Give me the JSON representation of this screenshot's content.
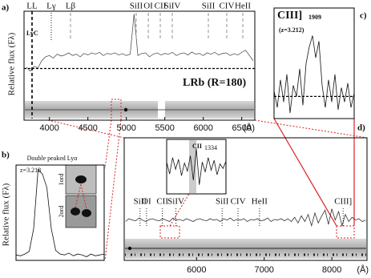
{
  "chart_data": [
    {
      "type": "line",
      "panel": "a)",
      "title": "LRb (R=180)",
      "y_label": "Relative flux (Fλ)",
      "x_unit": "(Å)",
      "annotation": "LyC",
      "annotation_color": "#2a4fd0",
      "zero_line": true,
      "xlim": [
        3670,
        6670
      ],
      "ylim": [
        -1,
        2.2
      ],
      "xticks": [
        4000,
        4500,
        5000,
        5500,
        6000,
        6500
      ],
      "x": [
        3700,
        3750,
        3800,
        3850,
        3900,
        3950,
        4000,
        4050,
        4100,
        4150,
        4200,
        4250,
        4300,
        4350,
        4400,
        4450,
        4500,
        4550,
        4600,
        4650,
        4700,
        4750,
        4800,
        4850,
        4900,
        4950,
        5000,
        5050,
        5100,
        5150,
        5200,
        5250,
        5300,
        5350,
        5400,
        5450,
        5500,
        5550,
        5600,
        5650,
        5700,
        5750,
        5800,
        5850,
        5900,
        5950,
        6000,
        6050,
        6100,
        6150,
        6200,
        6250,
        6300,
        6350,
        6400,
        6450,
        6500,
        6550,
        6600,
        6650
      ],
      "series": [
        {
          "color": "#555555",
          "values": [
            0.05,
            -0.1,
            0.08,
            0.02,
            0.3,
            0.45,
            0.5,
            0.4,
            0.55,
            0.48,
            0.52,
            0.6,
            0.5,
            0.55,
            0.45,
            0.58,
            0.52,
            0.6,
            0.55,
            0.62,
            0.5,
            0.58,
            0.55,
            0.6,
            0.52,
            0.57,
            0.5,
            0.55,
            2.1,
            0.5,
            0.58,
            0.6,
            0.45,
            0.55,
            0.6,
            0.52,
            0.58,
            0.55,
            0.62,
            0.5,
            0.57,
            0.6,
            0.52,
            0.63,
            0.55,
            0.58,
            0.5,
            0.6,
            0.55,
            0.62,
            0.52,
            0.58,
            0.6,
            0.5,
            0.57,
            0.52,
            0.62,
            0.7,
            0.5,
            0.3
          ]
        }
      ],
      "lines": [
        {
          "label": "LL",
          "x": 3774,
          "style": "bold-dashed"
        },
        {
          "label": "Lγ",
          "x": 4024,
          "style": "dotted"
        },
        {
          "label": "Lβ",
          "x": 4274,
          "style": "dashed"
        },
        {
          "label": "SiII",
          "x": 5128,
          "style": "dashed"
        },
        {
          "label": "OI",
          "x": 5285,
          "style": "dashed"
        },
        {
          "label": "CII",
          "x": 5441,
          "style": "dashed"
        },
        {
          "label": "SiIV",
          "x": 5597,
          "style": "dashed"
        },
        {
          "label": "SiII",
          "x": 6066,
          "style": "dashed"
        },
        {
          "label": "CIV",
          "x": 6305,
          "style": "dashed"
        },
        {
          "label": "HeII",
          "x": 6514,
          "style": "dashed"
        }
      ]
    },
    {
      "type": "line",
      "panel": "b)",
      "title": "Double peaked Lyα",
      "y_label": "Relative flux (Fλ)",
      "annotation": "z=3.218",
      "insets": [
        "1ord",
        "2ord"
      ],
      "xlim": [
        5100,
        5160
      ],
      "ylim": [
        -0.5,
        10
      ],
      "x": [
        5100,
        5103,
        5106,
        5109,
        5112,
        5115,
        5118,
        5121,
        5124,
        5127,
        5130,
        5133,
        5136,
        5139,
        5142,
        5145,
        5148,
        5151,
        5154,
        5157,
        5160
      ],
      "series": [
        {
          "color": "#111111",
          "values": [
            0.1,
            0.0,
            0.2,
            0.5,
            3,
            9.5,
            9,
            7.5,
            3,
            0.6,
            0.2,
            0.1,
            0.3,
            0.0,
            0.2,
            0.1,
            -0.1,
            0.2,
            0.0,
            0.1,
            0.2
          ]
        }
      ]
    },
    {
      "type": "line",
      "panel": "c)",
      "title": "CIII]",
      "title_sub": "1909",
      "annotation": "(z=3.212)",
      "zero_line": true,
      "xlim": [
        7990,
        8090
      ],
      "ylim": [
        -2,
        8
      ],
      "x": [
        7990,
        7994,
        7998,
        8002,
        8006,
        8010,
        8014,
        8018,
        8022,
        8026,
        8030,
        8034,
        8038,
        8042,
        8046,
        8050,
        8054,
        8058,
        8062,
        8066,
        8070,
        8074,
        8078,
        8082,
        8086,
        8090
      ],
      "series": [
        {
          "color": "#111111",
          "values": [
            0.5,
            -1,
            1.5,
            -0.5,
            2,
            -1.5,
            1,
            0,
            2.5,
            -0.8,
            3,
            4.5,
            5.5,
            3.5,
            5,
            1,
            -1,
            1.5,
            -0.5,
            2,
            -1.2,
            0.8,
            -0.5,
            1.2,
            -1,
            0.3
          ]
        }
      ]
    },
    {
      "type": "line",
      "panel": "d)",
      "x_unit": "(Å)",
      "xlim": [
        4930,
        8520
      ],
      "ylim": [
        -1,
        6
      ],
      "xticks": [
        6000,
        7000,
        8000
      ],
      "x": [
        4950,
        5000,
        5050,
        5100,
        5150,
        5200,
        5250,
        5300,
        5350,
        5400,
        5450,
        5500,
        5550,
        5600,
        5650,
        5700,
        5750,
        5800,
        5850,
        5900,
        5950,
        6000,
        6050,
        6100,
        6150,
        6200,
        6250,
        6300,
        6350,
        6400,
        6450,
        6500,
        6550,
        6600,
        6650,
        6700,
        6750,
        6800,
        6850,
        6900,
        6950,
        7000,
        7050,
        7100,
        7150,
        7200,
        7250,
        7300,
        7350,
        7400,
        7450,
        7500,
        7550,
        7600,
        7650,
        7700,
        7750,
        7800,
        7850,
        7900,
        7950,
        8000,
        8050,
        8100,
        8150,
        8200,
        8250,
        8300,
        8350,
        8400,
        8450,
        8500
      ],
      "series": [
        {
          "color": "#333333",
          "values": [
            0.1,
            0.3,
            0.2,
            0.15,
            0.35,
            0.2,
            0.1,
            0.25,
            0.3,
            0.2,
            0.15,
            0.3,
            0.2,
            0.1,
            0.35,
            0.2,
            0.25,
            0.15,
            0.3,
            0.2,
            0.1,
            0.25,
            0.3,
            0.2,
            0.15,
            0.3,
            0.2,
            0.25,
            0.1,
            0.3,
            0.2,
            0.35,
            0.15,
            0.25,
            0.2,
            0.3,
            0.1,
            0.25,
            0.2,
            0.3,
            0.15,
            0.2,
            0.35,
            0.1,
            0.25,
            0.2,
            0.3,
            0.15,
            0.3,
            0.1,
            0.4,
            0.0,
            0.5,
            0.1,
            0.6,
            -0.2,
            0.7,
            0.0,
            0.5,
            0.9,
            -0.1,
            1.0,
            0.2,
            0.8,
            -0.2,
            0.6,
            0.1,
            0.4,
            0.2,
            0.3,
            0.1,
            0.2
          ]
        }
      ],
      "lines": [
        {
          "label": "SiII",
          "x": 5165,
          "style": "dotted"
        },
        {
          "label": "OI",
          "x": 5260,
          "style": "dotted"
        },
        {
          "label": "CII",
          "x": 5495,
          "style": "dotted"
        },
        {
          "label": "SiIV",
          "x": 5695,
          "style": "dotted"
        },
        {
          "label": "SiII",
          "x": 6378,
          "style": "dotted"
        },
        {
          "label": "CIV",
          "x": 6613,
          "style": "dotted"
        },
        {
          "label": "HeII",
          "x": 6931,
          "style": "dotted"
        },
        {
          "label": "CIII]",
          "x": 8167,
          "style": "dotted"
        }
      ]
    },
    {
      "type": "line",
      "title": "CII",
      "title_sub": "1334",
      "xlim": [
        5590,
        5650
      ],
      "ylim": [
        -3,
        3
      ],
      "x": [
        5590,
        5593,
        5596,
        5599,
        5602,
        5605,
        5608,
        5611,
        5614,
        5617,
        5620,
        5623,
        5626,
        5629,
        5632,
        5635,
        5638,
        5641,
        5644,
        5647,
        5650
      ],
      "series": [
        {
          "color": "#111111",
          "values": [
            0.5,
            -0.8,
            1,
            -0.3,
            0.8,
            -1,
            0.4,
            -0.5,
            1.2,
            -1.5,
            2,
            -2,
            0.5,
            -0.6,
            1,
            -0.4,
            0.7,
            -0.9,
            0.3,
            -0.2,
            0.6
          ]
        }
      ]
    }
  ]
}
